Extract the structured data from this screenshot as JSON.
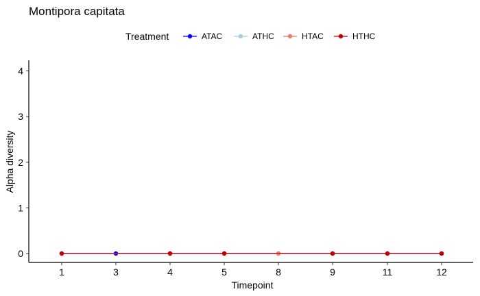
{
  "chart_data": {
    "type": "line",
    "title": "Montipora capitata",
    "xlabel": "Timepoint",
    "ylabel": "Alpha diversity",
    "x": [
      "1",
      "3",
      "4",
      "5",
      "8",
      "9",
      "11",
      "12"
    ],
    "ylim": [
      0,
      4
    ],
    "yticks": [
      "0",
      "1",
      "2",
      "3",
      "4"
    ],
    "grid": false,
    "legend": {
      "title": "Treatment",
      "position": "top"
    },
    "series": [
      {
        "name": "ATAC",
        "color": "#0000FF",
        "values": [
          0,
          0,
          0,
          0,
          null,
          0,
          0,
          0
        ]
      },
      {
        "name": "ATHC",
        "color": "#A6CEE3",
        "values": [
          0,
          null,
          0,
          0,
          0,
          0,
          0,
          0
        ]
      },
      {
        "name": "HTAC",
        "color": "#F8766D",
        "values": [
          0,
          null,
          0,
          0,
          0,
          0,
          0,
          0
        ]
      },
      {
        "name": "HTHC",
        "color": "#C00000",
        "values": [
          0,
          null,
          0,
          0,
          null,
          0,
          0,
          0
        ]
      }
    ]
  }
}
